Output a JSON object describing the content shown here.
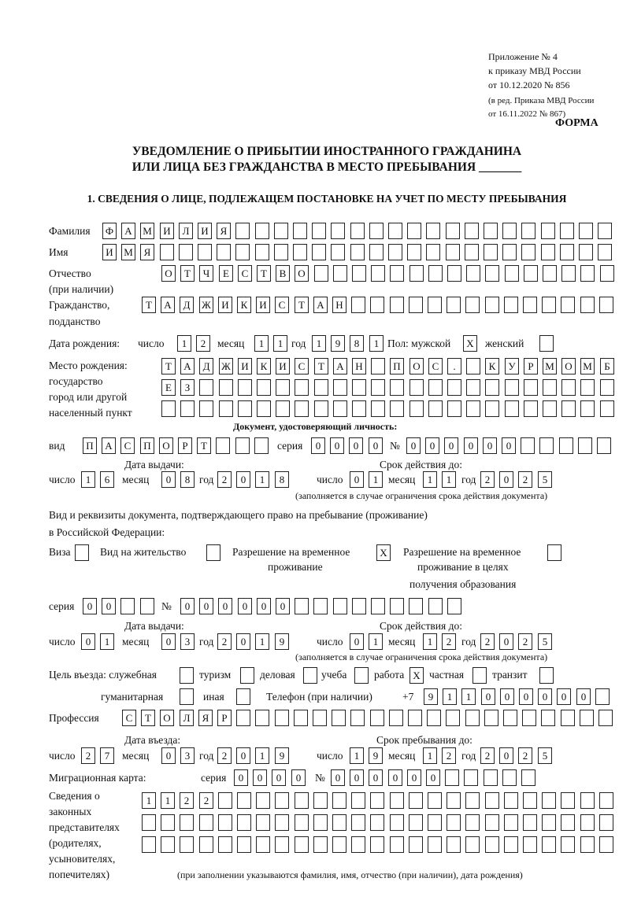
{
  "header": {
    "line1": "Приложение № 4",
    "line2": "к приказу МВД России",
    "line3": "от 10.12.2020 № 856",
    "line4": "(в ред. Приказа МВД России",
    "line5": "от 16.11.2022 № 867)",
    "form_label": "ФОРМА",
    "title1": "УВЕДОМЛЕНИЕ О ПРИБЫТИИ ИНОСТРАННОГО ГРАЖДАНИНА",
    "title2": "ИЛИ ЛИЦА БЕЗ ГРАЖДАНСТВА В МЕСТО ПРЕБЫВАНИЯ _______",
    "section1": "1. СВЕДЕНИЯ О ЛИЦЕ, ПОДЛЕЖАЩЕМ ПОСТАНОВКЕ НА УЧЕТ ПО МЕСТУ ПРЕБЫВАНИЯ"
  },
  "labels": {
    "surname": "Фамилия",
    "name": "Имя",
    "patronymic": "Отчество",
    "patronymic2": "(при наличии)",
    "citizenship": "Гражданство,",
    "citizenship2": "подданство",
    "birth_date": "Дата рождения:",
    "day": "число",
    "month": "месяц",
    "year": "год",
    "sex": "Пол: мужской",
    "female": "женский",
    "birthplace1": "Место рождения:",
    "birthplace2": "государство",
    "birthplace3": "город или другой",
    "birthplace4": "населенный пункт",
    "id_doc": "Документ, удостоверяющий личность:",
    "kind": "вид",
    "series": "серия",
    "number": "№",
    "issue_date": "Дата выдачи:",
    "valid_until": "Срок действия до:",
    "valid_note": "(заполняется в случае ограничения срока действия документа)",
    "right_doc1": "Вид и реквизиты документа, подтверждающего право на пребывание (проживание)",
    "right_doc2": "в Российской Федерации:",
    "visa": "Виза",
    "residence": "Вид на жительство",
    "temp1": "Разрешение на временное",
    "temp2": "проживание",
    "tempedu1": "Разрешение на временное",
    "tempedu2": "проживание в целях",
    "tempedu3": "получения образования",
    "purpose": "Цель въезда: служебная",
    "tourism": "туризм",
    "business": "деловая",
    "study": "учеба",
    "work": "работа",
    "private": "частная",
    "transit": "транзит",
    "humanitarian": "гуманитарная",
    "other": "иная",
    "phone": "Телефон (при наличии)",
    "phone_prefix": "+7",
    "profession": "Профессия",
    "entry_date": "Дата въезда:",
    "stay_until": "Срок пребывания до:",
    "migration_card": "Миграционная карта:",
    "rep1": "Сведения о",
    "rep2": "законных",
    "rep3": "представителях",
    "rep4": "(родителях,",
    "rep5": "усыновителях,",
    "rep6": "попечителях)",
    "rep_note": "(при заполнении указываются фамилия, имя, отчество (при наличии), дата рождения)"
  },
  "fields": {
    "surname": [
      "Ф",
      "А",
      "М",
      "И",
      "Л",
      "И",
      "Я"
    ],
    "name": [
      "И",
      "М",
      "Я"
    ],
    "patronymic": [
      "О",
      "Т",
      "Ч",
      "Е",
      "С",
      "Т",
      "В",
      "О"
    ],
    "citizenship": [
      "Т",
      "А",
      "Д",
      "Ж",
      "И",
      "К",
      "И",
      "С",
      "Т",
      "А",
      "Н"
    ],
    "birth_day": [
      "1",
      "2"
    ],
    "birth_month": [
      "1",
      "1"
    ],
    "birth_year": [
      "1",
      "9",
      "8",
      "1"
    ],
    "sex_male": [
      "X"
    ],
    "sex_female": [],
    "birthplace_row1": [
      "Т",
      "А",
      "Д",
      "Ж",
      "И",
      "К",
      "И",
      "С",
      "Т",
      "А",
      "Н",
      "",
      "П",
      "О",
      "С",
      ".",
      "",
      "К",
      "У",
      "Р",
      "М",
      "О",
      "М",
      "Б"
    ],
    "birthplace_row2": [
      "Е",
      "З"
    ],
    "birthplace_row3": [],
    "id_kind": [
      "П",
      "А",
      "С",
      "П",
      "О",
      "Р",
      "Т"
    ],
    "id_series": [
      "0",
      "0",
      "0",
      "0"
    ],
    "id_number": [
      "0",
      "0",
      "0",
      "0",
      "0",
      "0"
    ],
    "id_issue_day": [
      "1",
      "6"
    ],
    "id_issue_month": [
      "0",
      "8"
    ],
    "id_issue_year": [
      "2",
      "0",
      "1",
      "8"
    ],
    "id_valid_day": [
      "0",
      "1"
    ],
    "id_valid_month": [
      "1",
      "1"
    ],
    "id_valid_year": [
      "2",
      "0",
      "2",
      "5"
    ],
    "visa": [],
    "residence": [],
    "temp_residence": [
      "X"
    ],
    "temp_residence_edu": [],
    "right_series": [
      "0",
      "0"
    ],
    "right_number": [
      "0",
      "0",
      "0",
      "0",
      "0",
      "0"
    ],
    "right_issue_day": [
      "0",
      "1"
    ],
    "right_issue_month": [
      "0",
      "3"
    ],
    "right_issue_year": [
      "2",
      "0",
      "1",
      "9"
    ],
    "right_valid_day": [
      "0",
      "1"
    ],
    "right_valid_month": [
      "1",
      "2"
    ],
    "right_valid_year": [
      "2",
      "0",
      "2",
      "5"
    ],
    "purpose_service": [],
    "purpose_tourism": [],
    "purpose_business": [],
    "purpose_study": [],
    "purpose_work": [
      "X"
    ],
    "purpose_private": [],
    "purpose_transit": [],
    "purpose_humanitarian": [],
    "purpose_other": [],
    "phone": [
      "9",
      "1",
      "1",
      "0",
      "0",
      "0",
      "0",
      "0",
      "0"
    ],
    "profession": [
      "С",
      "Т",
      "О",
      "Л",
      "Я",
      "Р"
    ],
    "entry_day": [
      "2",
      "7"
    ],
    "entry_month": [
      "0",
      "3"
    ],
    "entry_year": [
      "2",
      "0",
      "1",
      "9"
    ],
    "stay_day": [
      "1",
      "9"
    ],
    "stay_month": [
      "1",
      "2"
    ],
    "stay_year": [
      "2",
      "0",
      "2",
      "5"
    ],
    "migration_series": [
      "0",
      "0",
      "0",
      "0"
    ],
    "migration_number": [
      "0",
      "0",
      "0",
      "0",
      "0",
      "0"
    ],
    "representatives_row1": [
      "1",
      "1",
      "2",
      "2"
    ],
    "representatives_row2": [],
    "representatives_row3": []
  }
}
